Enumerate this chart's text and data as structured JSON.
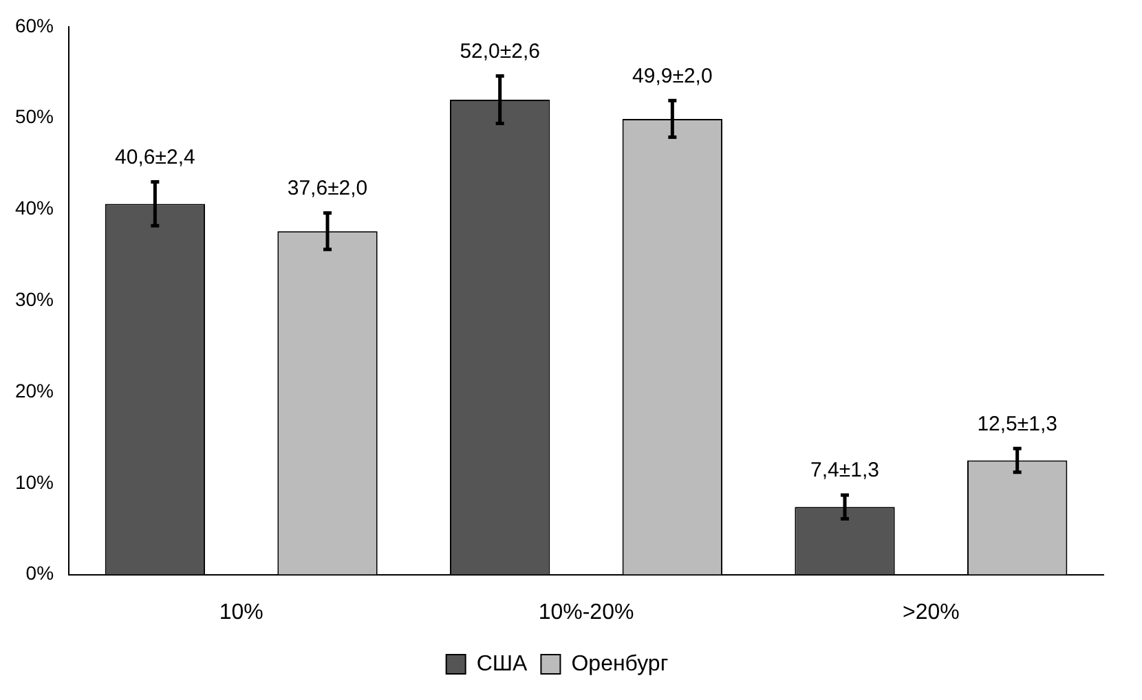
{
  "chart_data": {
    "type": "bar",
    "categories": [
      "10%",
      "10%-20%",
      ">20%"
    ],
    "series": [
      {
        "name": "США",
        "color": "#555555",
        "values": [
          40.6,
          52.0,
          7.4
        ],
        "errors": [
          2.4,
          2.6,
          1.3
        ],
        "value_labels": [
          "40,6±2,4",
          "52,0±2,6",
          "7,4±1,3"
        ]
      },
      {
        "name": "Оренбург",
        "color": "#bbbbbb",
        "values": [
          37.6,
          49.9,
          12.5
        ],
        "errors": [
          2.0,
          2.0,
          1.3
        ],
        "value_labels": [
          "37,6±2,0",
          "49,9±2,0",
          "12,5±1,3"
        ]
      }
    ],
    "ylim": [
      0,
      60
    ],
    "yticks": [
      {
        "value": 0,
        "label": "0%"
      },
      {
        "value": 10,
        "label": "10%"
      },
      {
        "value": 20,
        "label": "20%"
      },
      {
        "value": 30,
        "label": "30%"
      },
      {
        "value": 40,
        "label": "40%"
      },
      {
        "value": 50,
        "label": "50%"
      },
      {
        "value": 60,
        "label": "60%"
      }
    ],
    "grid": false,
    "legend": "bottom"
  }
}
